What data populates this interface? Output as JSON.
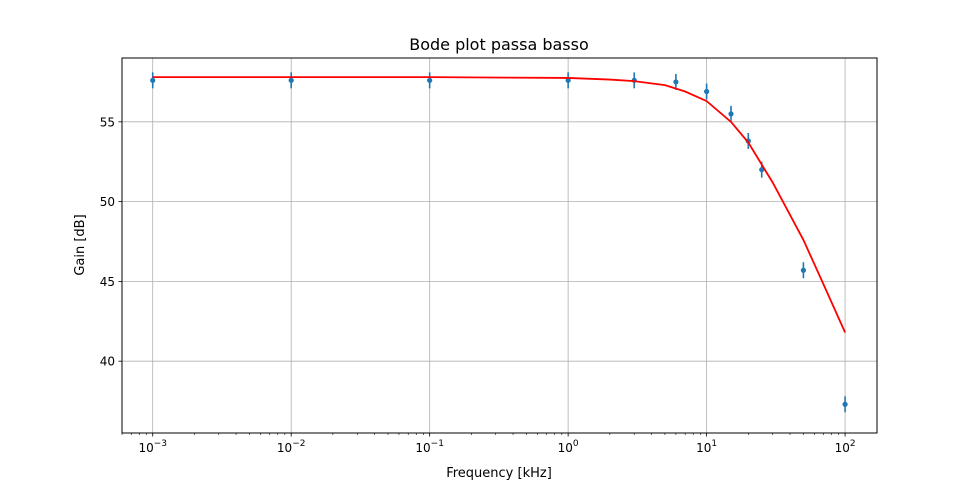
{
  "chart_data": {
    "type": "scatter",
    "title": "Bode plot passa basso",
    "xlabel": "Frequency [kHz]",
    "ylabel": "Gain [dB]",
    "xscale": "log",
    "xlim": [
      0.0006,
      170
    ],
    "ylim": [
      35.5,
      59
    ],
    "grid": true,
    "x_ticks": [
      {
        "value": 0.001,
        "mantissa": "10",
        "exponent": "−3"
      },
      {
        "value": 0.01,
        "mantissa": "10",
        "exponent": "−2"
      },
      {
        "value": 0.1,
        "mantissa": "10",
        "exponent": "−1"
      },
      {
        "value": 1,
        "mantissa": "10",
        "exponent": "0"
      },
      {
        "value": 10,
        "mantissa": "10",
        "exponent": "1"
      },
      {
        "value": 100,
        "mantissa": "10",
        "exponent": "2"
      }
    ],
    "y_ticks": [
      {
        "value": 40,
        "label": "40"
      },
      {
        "value": 45,
        "label": "45"
      },
      {
        "value": 50,
        "label": "50"
      },
      {
        "value": 55,
        "label": "55"
      }
    ],
    "series": [
      {
        "kind": "errorbar",
        "color": "#1f77b4",
        "points": [
          {
            "x": 0.001,
            "y": 57.6,
            "err": 0.5
          },
          {
            "x": 0.01,
            "y": 57.6,
            "err": 0.5
          },
          {
            "x": 0.1,
            "y": 57.6,
            "err": 0.5
          },
          {
            "x": 1,
            "y": 57.6,
            "err": 0.5
          },
          {
            "x": 3,
            "y": 57.6,
            "err": 0.5
          },
          {
            "x": 6,
            "y": 57.5,
            "err": 0.5
          },
          {
            "x": 10,
            "y": 56.9,
            "err": 0.5
          },
          {
            "x": 15,
            "y": 55.5,
            "err": 0.5
          },
          {
            "x": 20,
            "y": 53.8,
            "err": 0.5
          },
          {
            "x": 25,
            "y": 52.0,
            "err": 0.5
          },
          {
            "x": 50,
            "y": 45.7,
            "err": 0.5
          },
          {
            "x": 100,
            "y": 37.3,
            "err": 0.5
          }
        ]
      },
      {
        "kind": "line",
        "color": "#ff0000",
        "points": [
          {
            "x": 0.001,
            "y": 57.8
          },
          {
            "x": 0.1,
            "y": 57.8
          },
          {
            "x": 1,
            "y": 57.75
          },
          {
            "x": 2,
            "y": 57.65
          },
          {
            "x": 3,
            "y": 57.55
          },
          {
            "x": 5,
            "y": 57.3
          },
          {
            "x": 7,
            "y": 56.9
          },
          {
            "x": 10,
            "y": 56.3
          },
          {
            "x": 15,
            "y": 55.0
          },
          {
            "x": 20,
            "y": 53.7
          },
          {
            "x": 30,
            "y": 51.2
          },
          {
            "x": 50,
            "y": 47.6
          },
          {
            "x": 70,
            "y": 44.8
          },
          {
            "x": 100,
            "y": 41.8
          }
        ]
      }
    ]
  }
}
